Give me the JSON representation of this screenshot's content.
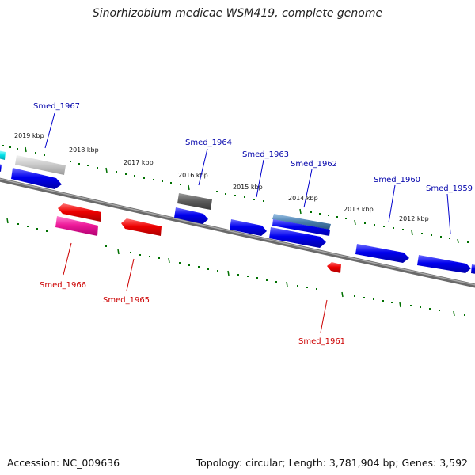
{
  "title": "Sinorhizobium medicae WSM419, complete genome",
  "footer": {
    "accession": "Accession: NC_009636",
    "summary": "Topology: circular; Length: 3,781,904 bp; Genes: 3,592"
  },
  "colors": {
    "forward_strand": "#0000ee",
    "reverse_strand": "#ee0000",
    "tick": "#007000",
    "backbone": "#888888",
    "forward_label": "#0000aa",
    "reverse_label": "#cc0000"
  },
  "scale_labels": [
    "2019 kbp",
    "2018 kbp",
    "2017 kbp",
    "2016 kbp",
    "2015 kbp",
    "2014 kbp",
    "2013 kbp",
    "2012 kbp"
  ],
  "gene_labels": {
    "smed_1967": "Smed_1967",
    "smed_1966": "Smed_1966",
    "smed_1965": "Smed_1965",
    "smed_1964": "Smed_1964",
    "smed_1963": "Smed_1963",
    "smed_1962": "Smed_1962",
    "smed_1961": "Smed_1961",
    "smed_1960": "Smed_1960",
    "smed_1959": "Smed_1959"
  }
}
